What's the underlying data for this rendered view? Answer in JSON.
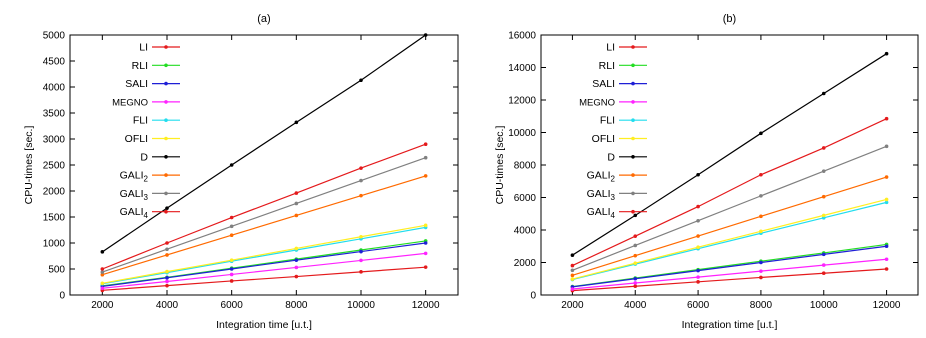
{
  "chart_data": [
    {
      "type": "line",
      "title": "(a)",
      "xlabel": "Integration time [u.t.]",
      "ylabel": "CPU-times [sec.]",
      "xlim": [
        1000,
        13000
      ],
      "ylim": [
        0,
        5000
      ],
      "xticks": [
        2000,
        4000,
        6000,
        8000,
        10000,
        12000
      ],
      "yticks": [
        0,
        500,
        1000,
        1500,
        2000,
        2500,
        3000,
        3500,
        4000,
        4500,
        5000
      ],
      "grid": false,
      "legend_position": "top-left",
      "x": [
        2000,
        4000,
        6000,
        8000,
        10000,
        12000
      ],
      "series": [
        {
          "name": "LI",
          "color": "#e41a1c",
          "values": [
            90,
            180,
            270,
            355,
            445,
            535
          ]
        },
        {
          "name": "RLI",
          "color": "#22dd22",
          "values": [
            175,
            340,
            515,
            690,
            865,
            1040
          ]
        },
        {
          "name": "SALI",
          "color": "#1f1fd6",
          "values": [
            165,
            330,
            500,
            670,
            835,
            1000
          ]
        },
        {
          "name": "MEGNO",
          "color": "#ff22ff",
          "values": [
            130,
            260,
            395,
            530,
            665,
            800
          ]
        },
        {
          "name": "FLI",
          "color": "#22ddee",
          "values": [
            215,
            430,
            650,
            865,
            1080,
            1300
          ]
        },
        {
          "name": "OFLI",
          "color": "#ffee22",
          "values": [
            225,
            450,
            670,
            895,
            1120,
            1340
          ]
        },
        {
          "name": "D",
          "color": "#000000",
          "values": [
            830,
            1670,
            2500,
            3320,
            4130,
            5000
          ]
        },
        {
          "name": "GALI",
          "sub": "2",
          "color": "#ff6a00",
          "values": [
            390,
            770,
            1150,
            1530,
            1910,
            2290
          ]
        },
        {
          "name": "GALI",
          "sub": "3",
          "color": "#808080",
          "values": [
            440,
            880,
            1320,
            1760,
            2200,
            2640
          ]
        },
        {
          "name": "GALI",
          "sub": "4",
          "color": "#e41a1c",
          "values": [
            500,
            1000,
            1490,
            1960,
            2440,
            2900
          ]
        }
      ]
    },
    {
      "type": "line",
      "title": "(b)",
      "xlabel": "Integration time [u.t.]",
      "ylabel": "CPU-times [sec.]",
      "xlim": [
        1000,
        13000
      ],
      "ylim": [
        0,
        16000
      ],
      "xticks": [
        2000,
        4000,
        6000,
        8000,
        10000,
        12000
      ],
      "yticks": [
        0,
        2000,
        4000,
        6000,
        8000,
        10000,
        12000,
        14000,
        16000
      ],
      "grid": false,
      "legend_position": "top-left",
      "x": [
        2000,
        4000,
        6000,
        8000,
        10000,
        12000
      ],
      "series": [
        {
          "name": "LI",
          "color": "#e41a1c",
          "values": [
            270,
            540,
            810,
            1080,
            1340,
            1600
          ]
        },
        {
          "name": "RLI",
          "color": "#22dd22",
          "values": [
            520,
            1040,
            1560,
            2080,
            2590,
            3110
          ]
        },
        {
          "name": "SALI",
          "color": "#1f1fd6",
          "values": [
            500,
            1000,
            1500,
            2000,
            2500,
            3000
          ]
        },
        {
          "name": "MEGNO",
          "color": "#ff22ff",
          "values": [
            370,
            740,
            1100,
            1470,
            1840,
            2200
          ]
        },
        {
          "name": "FLI",
          "color": "#22ddee",
          "values": [
            950,
            1900,
            2850,
            3800,
            4750,
            5700
          ]
        },
        {
          "name": "OFLI",
          "color": "#ffee22",
          "values": [
            980,
            1960,
            2940,
            3920,
            4900,
            5880
          ]
        },
        {
          "name": "D",
          "color": "#000000",
          "values": [
            2450,
            4900,
            7400,
            9950,
            12400,
            14850
          ]
        },
        {
          "name": "GALI",
          "sub": "2",
          "color": "#ff6a00",
          "values": [
            1210,
            2420,
            3630,
            4840,
            6050,
            7260
          ]
        },
        {
          "name": "GALI",
          "sub": "3",
          "color": "#808080",
          "values": [
            1520,
            3050,
            4570,
            6100,
            7620,
            9150
          ]
        },
        {
          "name": "GALI",
          "sub": "4",
          "color": "#e41a1c",
          "values": [
            1810,
            3620,
            5440,
            7400,
            9050,
            10850
          ]
        }
      ]
    }
  ]
}
